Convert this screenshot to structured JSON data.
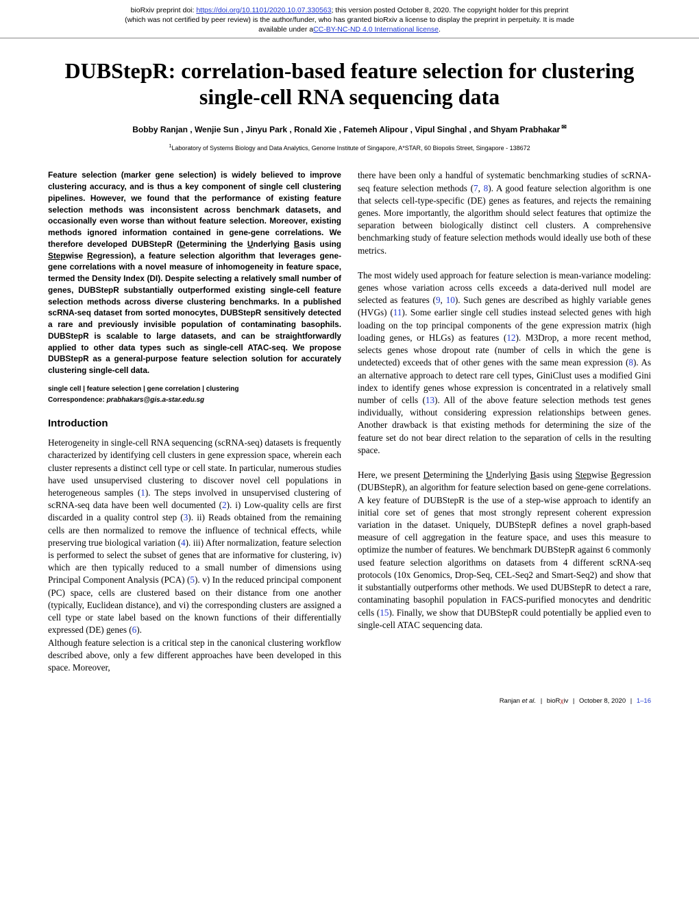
{
  "preprint": {
    "line1_prefix": "bioRxiv preprint doi: ",
    "doi_url": "https://doi.org/10.1101/2020.10.07.330563",
    "line1_suffix": "; this version posted October 8, 2020. The copyright holder for this preprint",
    "line2": "(which was not certified by peer review) is the author/funder, who has granted bioRxiv a license to display the preprint in perpetuity. It is made",
    "line3_prefix": "available under a",
    "license_text": "CC-BY-NC-ND 4.0 International license",
    "line3_suffix": "."
  },
  "title": "DUBStepR: correlation-based feature selection for clustering single-cell RNA sequencing data",
  "authors": "Bobby Ranjan , Wenjie Sun , Jinyu Park , Ronald Xie , Fatemeh Alipour , Vipul Singhal , and Shyam Prabhakar",
  "affiliation_sup": "1",
  "affiliation": "Laboratory of Systems Biology and Data Analytics, Genome Institute of Singapore, A*STAR, 60 Biopolis Street, Singapore - 138672",
  "abstract": {
    "p1a": "Feature selection (marker gene selection) is widely believed to improve clustering accuracy, and is thus a key component of single cell clustering pipelines. However, we found that the performance of existing feature selection methods was inconsistent across benchmark datasets, and occasionally even worse than without feature selection. Moreover, existing methods ignored information contained in gene-gene correlations. We therefore developed DUBStepR (",
    "u1": "D",
    "p1b": "etermining the ",
    "u2": "U",
    "p1c": "nderlying ",
    "u3": "B",
    "p1d": "asis using ",
    "u4": "Step",
    "p1e": "wise ",
    "u5": "R",
    "p1f": "egression), a feature selection algorithm that leverages gene-gene correlations with a novel measure of inhomogeneity in feature space, termed the Density Index (DI). Despite selecting a relatively small number of genes, DUBStepR substantially outperformed existing single-cell feature selection methods across diverse clustering benchmarks. In a published scRNA-seq dataset from sorted monocytes, DUBStepR sensitively detected a rare and previously invisible population of contaminating basophils. DUBStepR is scalable to large datasets, and can be straightforwardly applied to other data types such as single-cell ATAC-seq. We propose DUBStepR as a general-purpose feature selection solution for accurately clustering single-cell data."
  },
  "keywords": "single cell | feature selection | gene correlation | clustering",
  "correspondence_label": "Correspondence: ",
  "correspondence_email": "prabhakars@gis.a-star.edu.sg",
  "intro_heading": "Introduction",
  "left": {
    "p1a": "Heterogeneity in single-cell RNA sequencing (scRNA-seq) datasets is frequently characterized by identifying cell clusters in gene expression space, wherein each cluster represents a distinct cell type or cell state. In particular, numerous studies have used unsupervised clustering to discover novel cell populations in heterogeneous samples (",
    "r1": "1",
    "p1b": "). The steps involved in unsupervised clustering of scRNA-seq data have been well documented (",
    "r2": "2",
    "p1c": "). i) Low-quality cells are first discarded in a quality control step (",
    "r3": "3",
    "p1d": "). ii) Reads obtained from the remaining cells are then normalized to remove the influence of technical effects, while preserving true biological variation (",
    "r4": "4",
    "p1e": "). iii) After normalization, feature selection is performed to select the subset of genes that are informative for clustering, iv) which are then typically reduced to a small number of dimensions using Principal Component Analysis (PCA) (",
    "r5": "5",
    "p1f": "). v) In the reduced principal component (PC) space, cells are clustered based on their distance from one another (typically, Euclidean distance), and vi) the corresponding clusters are assigned a cell type or state label based on the known functions of their differentially expressed (DE) genes (",
    "r6": "6",
    "p1g": ").",
    "p2": "Although feature selection is a critical step in the canonical clustering workflow described above, only a few different approaches have been developed in this space. Moreover,"
  },
  "right": {
    "p1a": "there have been only a handful of systematic benchmarking studies of scRNA-seq feature selection methods (",
    "r7": "7",
    "comma": ", ",
    "r8": "8",
    "p1b": "). A good feature selection algorithm is one that selects cell-type-specific (DE) genes as features, and rejects the remaining genes. More importantly, the algorithm should select features that optimize the separation between biologically distinct cell clusters. A comprehensive benchmarking study of feature selection methods would ideally use both of these metrics.",
    "p2a": "The most widely used approach for feature selection is mean-variance modeling: genes whose variation across cells exceeds a data-derived null model are selected as features (",
    "r9": "9",
    "r10": "10",
    "p2b": "). Such genes are described as highly variable genes (HVGs) (",
    "r11": "11",
    "p2c": "). Some earlier single cell studies instead selected genes with high loading on the top principal components of the gene expression matrix (high loading genes, or HLGs) as features (",
    "r12": "12",
    "p2d": "). M3Drop, a more recent method, selects genes whose dropout rate (number of cells in which the gene is undetected) exceeds that of other genes with the same mean expression (",
    "r8b": "8",
    "p2e": "). As an alternative approach to detect rare cell types, GiniClust uses a modified Gini index to identify genes whose expression is concentrated in a relatively small number of cells (",
    "r13": "13",
    "p2f": "). All of the above feature selection methods test genes individually, without considering expression relationships between genes. Another drawback is that existing methods for determining the size of the feature set do not bear direct relation to the separation of cells in the resulting space.",
    "p3a": "Here, we present ",
    "u1": "D",
    "p3b": "etermining the ",
    "u2": "U",
    "p3c": "nderlying ",
    "u3": "B",
    "p3d": "asis using ",
    "u4": "Step",
    "p3e": "wise ",
    "u5": "R",
    "p3f": "egression (DUBStepR), an algorithm for feature selection based on gene-gene correlations. A key feature of DUBStepR is the use of a step-wise approach to identify an initial core set of genes that most strongly represent coherent expression variation in the dataset. Uniquely, DUBStepR defines a novel graph-based measure of cell aggregation in the feature space, and uses this measure to optimize the number of features. We benchmark DUBStepR against 6 commonly used feature selection algorithms on datasets from 4 different scRNA-seq protocols (10x Genomics, Drop-Seq, CEL-Seq2 and Smart-Seq2) and show that it substantially outperforms other methods. We used DUBStepR to detect a rare, contaminating basophil population in FACS-purified monocytes and dendritic cells (",
    "r15": "15",
    "p3g": "). Finally, we show that DUBStepR could potentially be applied even to single-cell ATAC sequencing data."
  },
  "footer": {
    "authors": "Ranjan ",
    "etal": "et al.",
    "bio": "bioR",
    "chi": "χ",
    "iv": "iv",
    "date": "October 8, 2020",
    "pages": "1–16"
  },
  "colors": {
    "link": "#2038d0",
    "chi": "#b02020"
  }
}
